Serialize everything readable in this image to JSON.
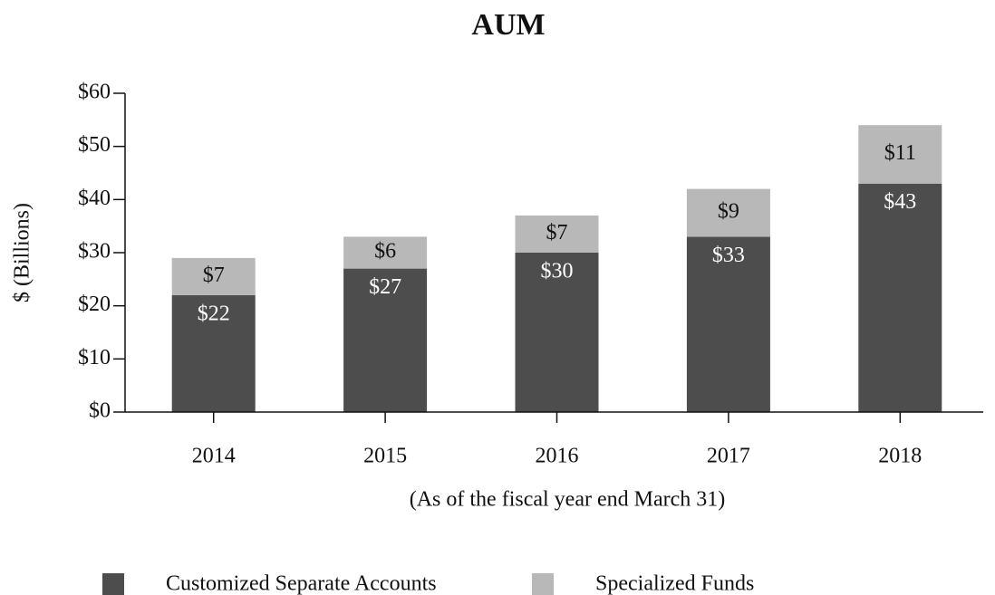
{
  "chart_data": {
    "type": "stacked_bar",
    "title": "AUM",
    "y_label": "$ (Billions)",
    "x_label": "(As of the fiscal year end March 31)",
    "categories": [
      "2014",
      "2015",
      "2016",
      "2017",
      "2018"
    ],
    "series": [
      {
        "name": "Customized Separate Accounts",
        "color": "#4d4d4d",
        "values": [
          22,
          27,
          30,
          33,
          43
        ],
        "value_labels": [
          "$22",
          "$27",
          "$30",
          "$33",
          "$43"
        ]
      },
      {
        "name": "Specialized Funds",
        "color": "#b8b8b8",
        "values": [
          7,
          6,
          7,
          9,
          11
        ],
        "value_labels": [
          "$7",
          "$6",
          "$7",
          "$9",
          "$11"
        ]
      }
    ],
    "ylim": [
      0,
      60
    ],
    "yticks": [
      {
        "value": 0,
        "label": "$0"
      },
      {
        "value": 10,
        "label": "$10"
      },
      {
        "value": 20,
        "label": "$20"
      },
      {
        "value": 30,
        "label": "$30"
      },
      {
        "value": 40,
        "label": "$40"
      },
      {
        "value": 50,
        "label": "$50"
      },
      {
        "value": 60,
        "label": "$60"
      }
    ],
    "legend": "bottom"
  }
}
